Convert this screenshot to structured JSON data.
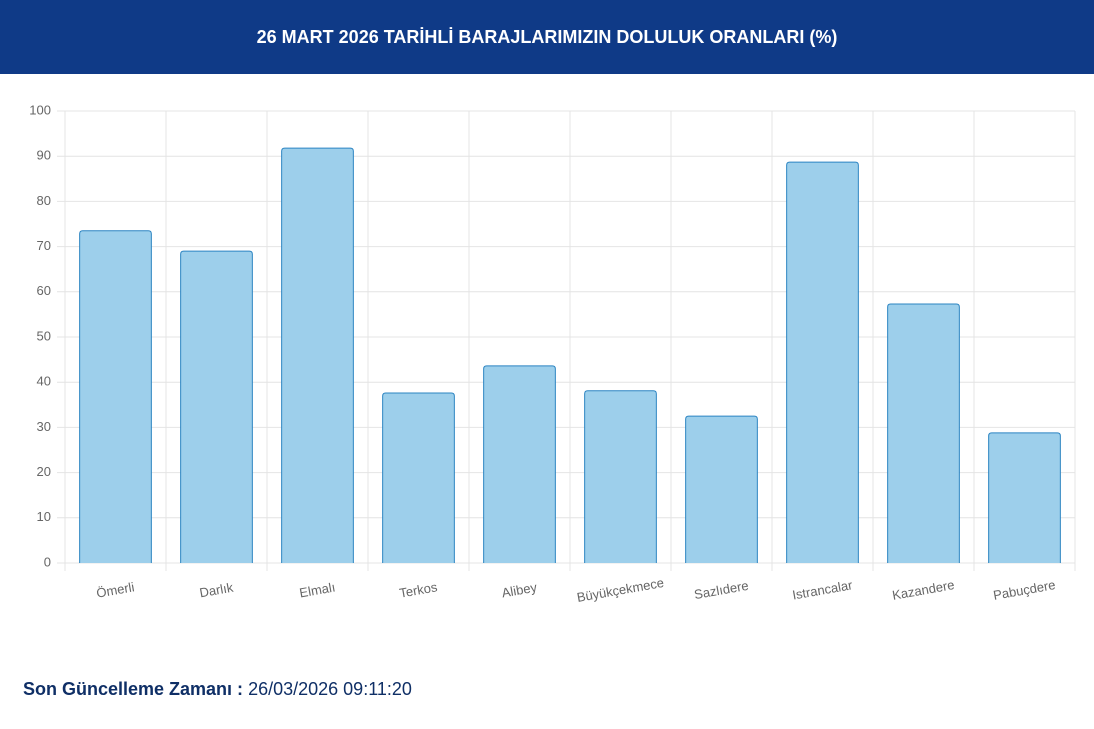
{
  "chart_data": {
    "type": "bar",
    "title": "26 MART 2026 TARİHLİ BARAJLARIMIZIN DOLULUK ORANLARI (%)",
    "categories": [
      "Ömerli",
      "Darlık",
      "Elmalı",
      "Terkos",
      "Alibey",
      "Büyükçekmece",
      "Sazlıdere",
      "Istrancalar",
      "Kazandere",
      "Pabuçdere"
    ],
    "values": [
      73.5,
      69.0,
      91.8,
      37.6,
      43.6,
      38.1,
      32.5,
      88.7,
      57.3,
      28.8
    ],
    "color": "#9dcfeb",
    "ylim": [
      0,
      100
    ],
    "yticks": [
      0,
      10,
      20,
      30,
      40,
      50,
      60,
      70,
      80,
      90,
      100
    ],
    "grid": true
  },
  "footer": {
    "label": "Son Güncelleme Zamanı :",
    "value": "26/03/2026 09:11:20"
  }
}
